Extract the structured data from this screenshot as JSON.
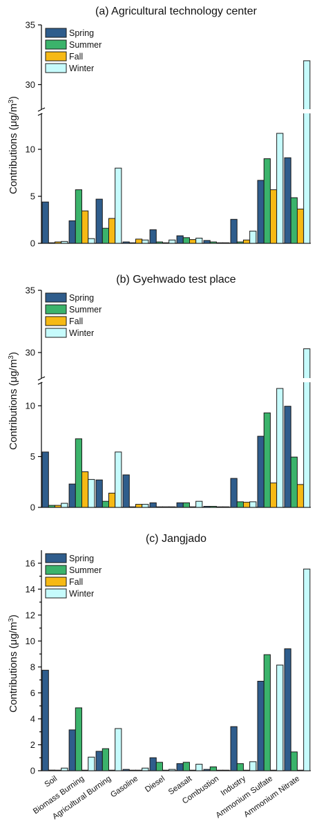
{
  "categories": [
    "Soil",
    "Biomass Burning",
    "Agricultural Burning",
    "Gasoline",
    "Diesel",
    "Seasalt",
    "Combustion",
    "Industry",
    "Ammonium Sulfate",
    "Ammonium Nitrate"
  ],
  "season_colors": {
    "Spring": "#2f5d8c",
    "Summer": "#3bb36b",
    "Fall": "#f6b915",
    "Winter": "#c6fbfc"
  },
  "chart_data": [
    {
      "type": "bar",
      "title": "(a) Agricultural technology center",
      "ylabel": "Contributions (μg/m³)",
      "ylim": [
        0,
        35
      ],
      "axis_break": [
        14,
        28
      ],
      "yticks": [
        0,
        5,
        10,
        30,
        35
      ],
      "categories": [
        "Soil",
        "Biomass Burning",
        "Agricultural Burning",
        "Gasoline",
        "Diesel",
        "Seasalt",
        "Combustion",
        "Industry",
        "Ammonium Sulfate",
        "Ammonium Nitrate"
      ],
      "series": [
        {
          "name": "Spring",
          "values": [
            4.4,
            2.4,
            4.7,
            0.15,
            1.45,
            0.8,
            0.3,
            2.55,
            6.7,
            9.1
          ]
        },
        {
          "name": "Summer",
          "values": [
            0.05,
            5.7,
            1.6,
            0.05,
            0.15,
            0.6,
            0.15,
            0.15,
            9.0,
            4.85
          ]
        },
        {
          "name": "Fall",
          "values": [
            0.15,
            3.45,
            2.65,
            0.45,
            0.05,
            0.4,
            0.05,
            0.35,
            5.7,
            3.65
          ]
        },
        {
          "name": "Winter",
          "values": [
            0.2,
            0.5,
            8.0,
            0.35,
            0.35,
            0.55,
            0.0,
            1.3,
            11.7,
            32.0
          ]
        }
      ]
    },
    {
      "type": "bar",
      "title": "(b) Gyehwado test place",
      "ylabel": "Contributions (μg/m³)",
      "ylim": [
        0,
        35
      ],
      "axis_break": [
        12,
        28
      ],
      "yticks": [
        0,
        5,
        10,
        30,
        35
      ],
      "categories": [
        "Soil",
        "Biomass Burning",
        "Agricultural Burning",
        "Gasoline",
        "Diesel",
        "Seasalt",
        "Combustion",
        "Industry",
        "Ammonium Sulfate",
        "Ammonium Nitrate"
      ],
      "series": [
        {
          "name": "Spring",
          "values": [
            5.45,
            2.3,
            2.7,
            3.2,
            0.45,
            0.45,
            0.1,
            2.85,
            7.0,
            9.95
          ]
        },
        {
          "name": "Summer",
          "values": [
            0.2,
            6.75,
            0.6,
            0.0,
            0.0,
            0.45,
            0.1,
            0.55,
            9.3,
            4.95
          ]
        },
        {
          "name": "Fall",
          "values": [
            0.2,
            3.5,
            1.4,
            0.3,
            0.0,
            0.05,
            0.05,
            0.5,
            2.4,
            2.25
          ]
        },
        {
          "name": "Winter",
          "values": [
            0.4,
            2.75,
            5.45,
            0.3,
            0.0,
            0.6,
            0.05,
            0.55,
            11.7,
            30.3
          ]
        }
      ]
    },
    {
      "type": "bar",
      "title": "(c) Jangjado",
      "ylabel": "Contributions (μg/m³)",
      "ylim": [
        0,
        17
      ],
      "yticks": [
        0,
        2,
        4,
        6,
        8,
        10,
        12,
        14,
        16
      ],
      "categories": [
        "Soil",
        "Biomass Burning",
        "Agricultural Burning",
        "Gasoline",
        "Diesel",
        "Seasalt",
        "Combustion",
        "Industry",
        "Ammonium Sulfate",
        "Ammonium Nitrate"
      ],
      "series": [
        {
          "name": "Spring",
          "values": [
            7.75,
            3.15,
            1.5,
            0.1,
            1.0,
            0.55,
            0.1,
            3.4,
            6.9,
            9.4
          ]
        },
        {
          "name": "Summer",
          "values": [
            0.05,
            4.85,
            1.7,
            0.0,
            0.65,
            0.65,
            0.3,
            0.55,
            8.95,
            1.45
          ]
        },
        {
          "name": "Fall",
          "values": [
            0.0,
            0.0,
            0.0,
            0.0,
            0.0,
            0.0,
            0.0,
            0.0,
            0.0,
            0.0
          ]
        },
        {
          "name": "Winter",
          "values": [
            0.2,
            1.05,
            3.25,
            0.2,
            0.1,
            0.5,
            0.0,
            0.7,
            8.15,
            15.55
          ]
        }
      ]
    }
  ]
}
